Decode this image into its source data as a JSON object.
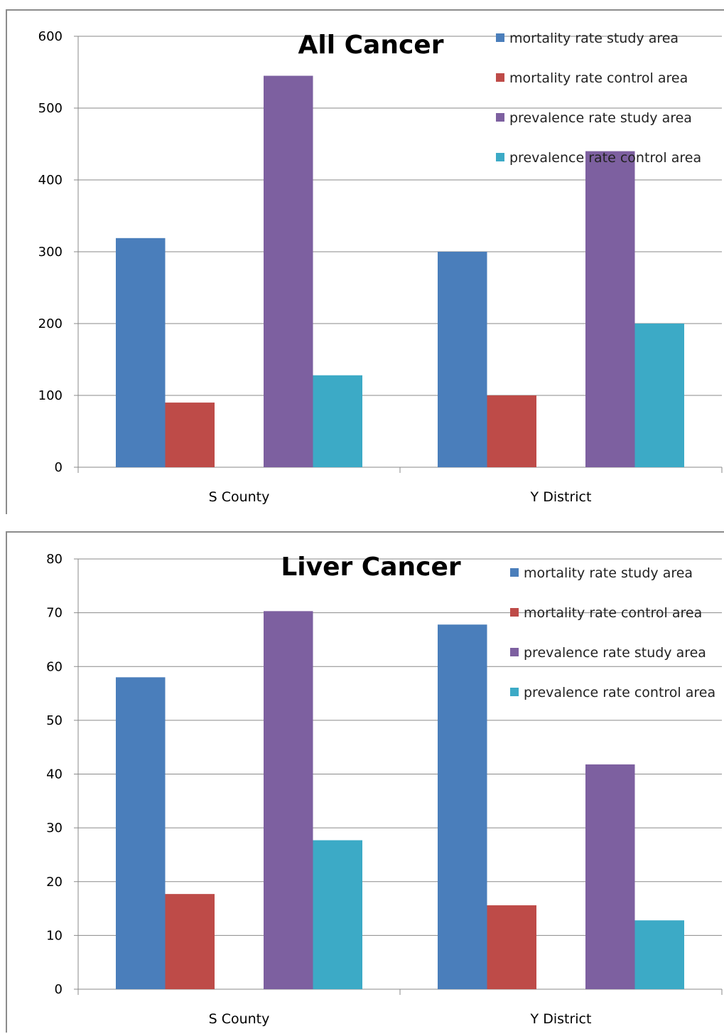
{
  "chart_data": [
    {
      "type": "bar",
      "title": "All Cancer",
      "categories": [
        "S County",
        "Y District"
      ],
      "ylim": [
        0,
        600
      ],
      "yticks": [
        "0",
        "100",
        "200",
        "300",
        "400",
        "500",
        "600"
      ],
      "grid": true,
      "legend_position": "top-right",
      "series": [
        {
          "name": "mortality rate study area",
          "color": "#4a7ebb",
          "values": [
            319,
            300
          ]
        },
        {
          "name": "mortality rate control area",
          "color": "#be4b48",
          "values": [
            90,
            100
          ]
        },
        {
          "name": "prevalence rate study area",
          "color": "#7d60a0",
          "values": [
            545,
            440
          ]
        },
        {
          "name": "prevalence rate control area",
          "color": "#3caac6",
          "values": [
            128,
            200
          ]
        }
      ]
    },
    {
      "type": "bar",
      "title": "Liver Cancer",
      "categories": [
        "S County",
        "Y District"
      ],
      "ylim": [
        0,
        80
      ],
      "yticks": [
        "0",
        "10",
        "20",
        "30",
        "40",
        "50",
        "60",
        "70",
        "80"
      ],
      "grid": true,
      "legend_position": "top-right",
      "series": [
        {
          "name": "mortality rate study area",
          "color": "#4a7ebb",
          "values": [
            58,
            67.8
          ]
        },
        {
          "name": "mortality rate control area",
          "color": "#be4b48",
          "values": [
            17.7,
            15.6
          ]
        },
        {
          "name": "prevalence rate study area",
          "color": "#7d60a0",
          "values": [
            70.3,
            41.8
          ]
        },
        {
          "name": "prevalence rate control area",
          "color": "#3caac6",
          "values": [
            27.7,
            12.8
          ]
        }
      ]
    }
  ]
}
